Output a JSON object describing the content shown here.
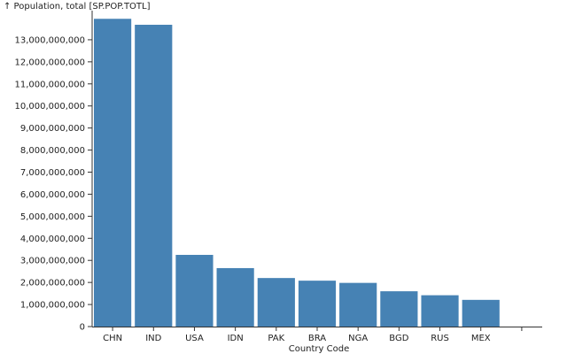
{
  "chart_data": {
    "type": "bar",
    "ylabel": "↑ Population, total [SP.POP.TOTL]",
    "xlabel": "Country Code",
    "categories": [
      "CHN",
      "IND",
      "USA",
      "IDN",
      "PAK",
      "BRA",
      "NGA",
      "BGD",
      "RUS",
      "MEX"
    ],
    "values": [
      13950000000,
      13680000000,
      3250000000,
      2650000000,
      2200000000,
      2080000000,
      1980000000,
      1600000000,
      1420000000,
      1210000000
    ],
    "ylim": [
      0,
      14000000000
    ],
    "yticks": [
      0,
      1000000000,
      2000000000,
      3000000000,
      4000000000,
      5000000000,
      6000000000,
      7000000000,
      8000000000,
      9000000000,
      10000000000,
      11000000000,
      12000000000,
      13000000000
    ],
    "ytick_labels": [
      "0",
      "1,000,000,000",
      "2,000,000,000",
      "3,000,000,000",
      "4,000,000,000",
      "5,000,000,000",
      "6,000,000,000",
      "7,000,000,000",
      "8,000,000,000",
      "9,000,000,000",
      "10,000,000,000",
      "11,000,000,000",
      "12,000,000,000",
      "13,000,000,000"
    ],
    "grid": false,
    "bar_color": "#4682b4"
  }
}
